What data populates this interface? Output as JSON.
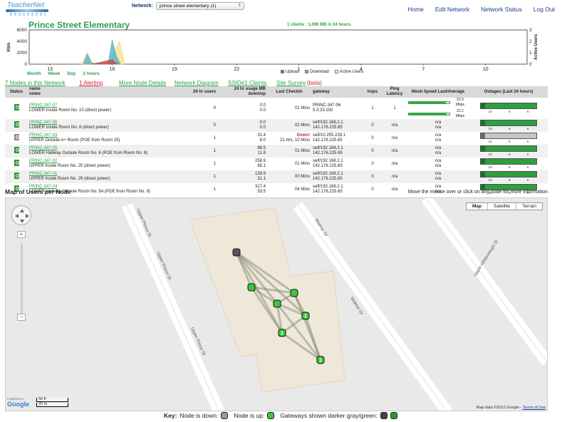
{
  "brand": {
    "logo_text": "TeacherNet"
  },
  "network": {
    "label": "Network:",
    "selected": "prince street elementary (1)"
  },
  "nav": [
    "Home",
    "Edit Network",
    "Network Status",
    "Log Out"
  ],
  "page_title": "Prince Street Elementary",
  "summary": "1 clients : 1,006 MB in 24 hours.",
  "range_links": [
    "Month",
    "Week",
    "Day",
    "2 hours"
  ],
  "chart_data": {
    "type": "area",
    "x_ticks": [
      "13",
      "16",
      "19",
      "22",
      "1",
      "4",
      "7",
      "10"
    ],
    "y_left": {
      "label": "Kb/s",
      "ticks": [
        "6000",
        "4000",
        "2000",
        "0"
      ],
      "ylim": [
        0,
        6000
      ]
    },
    "y_right": {
      "label": "Active Users",
      "ticks": [
        "3",
        "2",
        "1",
        "0"
      ],
      "ylim": [
        0,
        3
      ]
    },
    "series": [
      {
        "name": "Upload",
        "color": "#c0504d",
        "points": [
          [
            15,
            0
          ],
          [
            16.0,
            800
          ],
          [
            16.15,
            300
          ],
          [
            16.3,
            0
          ]
        ]
      },
      {
        "name": "Download",
        "color": "#5bb6c9",
        "points": [
          [
            14.6,
            0
          ],
          [
            14.8,
            1800
          ],
          [
            15.0,
            200
          ],
          [
            15.8,
            0
          ],
          [
            16.0,
            4300
          ],
          [
            16.2,
            1500
          ],
          [
            16.4,
            0
          ]
        ]
      },
      {
        "name": "Active Users",
        "color": "#f4e99a",
        "points": [
          [
            14.5,
            0
          ],
          [
            14.8,
            1
          ],
          [
            15.1,
            0
          ],
          [
            15.9,
            0
          ],
          [
            16.1,
            1
          ],
          [
            16.35,
            2
          ],
          [
            16.6,
            0
          ]
        ]
      }
    ],
    "legend": [
      "Upload",
      "Download",
      "Active Users"
    ],
    "legend_colors": [
      "#c0504d",
      "#5bb6c9",
      "#ffffff"
    ]
  },
  "sublinks": {
    "nodes": "7 Nodes in this Network",
    "alerting": "1 Alerting",
    "more_details": "More Node Details",
    "diagram": "Network Diagram",
    "ssid": "SSID#1 Clients",
    "survey": "Site Survey",
    "beta": "(beta)"
  },
  "table": {
    "headers": {
      "status": "Status",
      "name": "name",
      "notes": "notes",
      "users": "24 hr users",
      "usage": "24 hr usage MB down/up",
      "checkin": "Last Checkin",
      "gateway": "gateway",
      "hops": "hops",
      "ping": "Ping Latency",
      "mesh": "Mesh Speed Last/Average",
      "outages": "Outages (Last 24 hours)"
    },
    "rows": [
      {
        "status": "up",
        "name": "PRINC-347-07",
        "notes": "LOWER Inside Room No. 10 (direct power)",
        "users": "0",
        "down": "0.0",
        "up": "0.0",
        "checkin": "01 Mins",
        "down_flag": "",
        "gw1": "PRINC-347-06",
        "gw2": "5.3.33.192",
        "hops": "1",
        "ping": "1",
        "mesh_last": "22.0 Mbps",
        "mesh_avg": "22.2 Mbps",
        "mesh": true,
        "outage": "green"
      },
      {
        "status": "up",
        "name": "PRINC-347-06",
        "notes": "LOWER Inside Room No. 8 (direct power)",
        "users": "0",
        "down": "0.0",
        "up": "0.0",
        "checkin": "02 Mins",
        "down_flag": "",
        "gw1": "self/192.168.2.1",
        "gw2": "142.176.225.65",
        "hops": "0",
        "ping": "n/a",
        "mesh_last": "n/a",
        "mesh_avg": "n/a",
        "mesh": false,
        "outage": "green"
      },
      {
        "status": "down",
        "name": "PRINC-347-03",
        "notes": "UPPER Outside A+ Room (POE from Room 25)",
        "users": "1",
        "down": "31.4",
        "up": "8.0",
        "checkin": "21 Hrs, 10 Mins",
        "down_flag": "Down!",
        "gw1": "self/10.255.228.1",
        "gw2": "142.176.225.65",
        "hops": "0",
        "ping": "n/a",
        "mesh_last": "n/a",
        "mesh_avg": "n/a",
        "mesh": false,
        "outage": "grey"
      },
      {
        "status": "up",
        "name": "PRINC-347-05",
        "notes": "LOWER Hallway Outside Room No. 6 (POE from Room No. 8)",
        "users": "1",
        "down": "88.5",
        "up": "11.8",
        "checkin": "01 Mins",
        "down_flag": "",
        "gw1": "self/192.168.2.1",
        "gw2": "142.176.225.65",
        "hops": "0",
        "ping": "n/a",
        "mesh_last": "n/a",
        "mesh_avg": "n/a",
        "mesh": false,
        "outage": "green"
      },
      {
        "status": "up",
        "name": "PRINC-347-02",
        "notes": "UPPER Inside Room No. 25 (direct power)",
        "users": "1",
        "down": "258.9",
        "up": "65.1",
        "checkin": "01 Mins",
        "down_flag": "",
        "gw1": "self/192.168.2.1",
        "gw2": "142.176.225.65",
        "hops": "0",
        "ping": "n/a",
        "mesh_last": "n/a",
        "mesh_avg": "n/a",
        "mesh": false,
        "outage": "green"
      },
      {
        "status": "up",
        "name": "PRINC-347-01",
        "notes": "UPPER Inside Room No. 29 (direct power)",
        "users": "1",
        "down": "139.9",
        "up": "31.1",
        "checkin": "00 Mins",
        "down_flag": "",
        "gw1": "self/192.168.2.1",
        "gw2": "142.176.225.65",
        "hops": "0",
        "ping": "n/a",
        "mesh_last": "n/a",
        "mesh_avg": "n/a",
        "mesh": false,
        "outage": "green"
      },
      {
        "status": "up",
        "name": "PRINC-347-04",
        "notes": "LOWER Hallway Outside Room No. 9A (POE from Room No. 8)",
        "users": "1",
        "down": "317.4",
        "up": "53.5",
        "checkin": "04 Mins",
        "down_flag": "",
        "gw1": "self/192.168.2.1",
        "gw2": "142.176.225.65",
        "hops": "0",
        "ping": "n/a",
        "mesh_last": "n/a",
        "mesh_avg": "n/a",
        "mesh": false,
        "outage": "green"
      }
    ],
    "outage_ticks": [
      "10",
      "6",
      "6"
    ]
  },
  "map": {
    "title": "Map of Users per Node",
    "hint": "Move the mouse over or click on any node for more information",
    "types": [
      "Map",
      "Satellite",
      "Terrain"
    ],
    "streets": [
      "Upper Prince St",
      "Upper Prince St",
      "Upper Prince St",
      "Walmer Dr",
      "Walmer Dr",
      "Upper Hillsborough St",
      "Upper Hillsborough St"
    ],
    "node_labels": [
      "",
      "",
      "",
      "",
      "1",
      "1",
      "1"
    ],
    "scale_ft": "50 ft",
    "scale_m": "20 m",
    "powered": "POWERED BY",
    "google": "Google",
    "copyright": "Map data ©2012 Google - ",
    "terms": "Terms of Use"
  },
  "key": {
    "label": "Key:",
    "down": "Node is down:",
    "up": "Node is up:",
    "gateways": "Gateways shown darker gray/green:"
  }
}
